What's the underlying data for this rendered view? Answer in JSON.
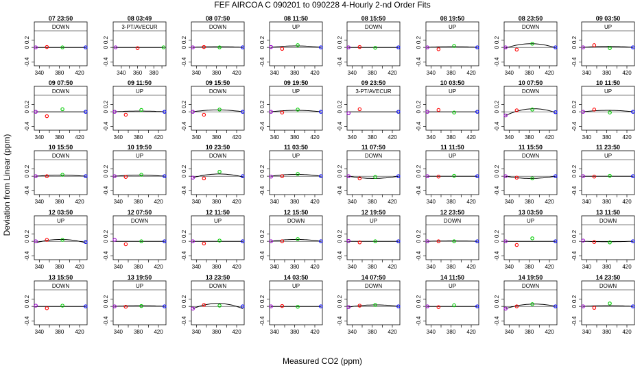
{
  "title": "FEF   AIRCOA C   090201 to 090228   4-Hourly 2-nd Order Fits",
  "xlabel": "Measured CO2 (ppm)",
  "ylabel": "Deviation from Linear (ppm)",
  "chart_data": {
    "type": "scatter",
    "grid": "small-multiples 8x5",
    "xlim": [
      330,
      435
    ],
    "ylim": [
      -0.5,
      0.45
    ],
    "x_ticks": [
      340,
      380,
      420
    ],
    "x_minor_ticks": [
      340,
      360,
      380,
      400,
      420
    ],
    "y_ticks": [
      -0.4,
      0,
      0.2
    ],
    "point_colors": [
      "#9900cc",
      "#ff0000",
      "#00cc00",
      "#0000ff"
    ],
    "curve_color": "#000000",
    "panels": [
      {
        "title": "07 23:50",
        "label": "DOWN",
        "x": [
          333,
          355,
          386,
          432
        ],
        "y": [
          0.0,
          0.01,
          0.0,
          0.0
        ],
        "curve": [
          0.0,
          0.0,
          0.0
        ]
      },
      {
        "title": "08 03:49",
        "label": "3-PT/AVECUR",
        "x": [
          333,
          360,
          392
        ],
        "y": [
          0.0,
          -0.02,
          0.0
        ],
        "curve": [
          0.0,
          0.0,
          0.0
        ],
        "xlim": [
          330,
          395
        ],
        "x_ticks": [
          340,
          360,
          380
        ],
        "x_minor_ticks": [
          340,
          350,
          360,
          370,
          380,
          390
        ]
      },
      {
        "title": "08 07:50",
        "label": "DOWN",
        "x": [
          333,
          355,
          386,
          432
        ],
        "y": [
          0.0,
          0.01,
          0.0,
          0.0
        ],
        "curve": [
          0.0,
          0.02,
          0.0
        ]
      },
      {
        "title": "08 11:50",
        "label": "UP",
        "x": [
          333,
          355,
          386,
          432
        ],
        "y": [
          0.01,
          -0.04,
          0.06,
          0.0
        ],
        "curve": [
          0.0,
          0.04,
          0.0
        ]
      },
      {
        "title": "08 15:50",
        "label": "DOWN",
        "x": [
          333,
          355,
          386,
          432
        ],
        "y": [
          0.0,
          0.01,
          -0.01,
          0.0
        ],
        "curve": [
          0.0,
          0.0,
          0.0
        ]
      },
      {
        "title": "08 19:50",
        "label": "UP",
        "x": [
          333,
          355,
          386,
          432
        ],
        "y": [
          0.0,
          -0.05,
          0.04,
          0.0
        ],
        "curve": [
          0.0,
          0.02,
          0.0
        ]
      },
      {
        "title": "08 23:50",
        "label": "DOWN",
        "x": [
          333,
          355,
          386,
          432
        ],
        "y": [
          0.0,
          -0.06,
          0.1,
          0.0
        ],
        "curve": [
          -0.02,
          0.1,
          -0.01
        ]
      },
      {
        "title": "09 03:50",
        "label": "UP",
        "x": [
          333,
          355,
          386,
          432
        ],
        "y": [
          0.0,
          0.06,
          -0.02,
          0.0
        ],
        "curve": [
          0.0,
          0.03,
          0.0
        ]
      },
      {
        "title": "09 07:50",
        "label": "DOWN",
        "x": [
          333,
          355,
          386,
          432
        ],
        "y": [
          0.0,
          -0.12,
          0.07,
          0.0
        ],
        "curve": [
          0.0,
          0.0,
          0.0
        ]
      },
      {
        "title": "09 11:50",
        "label": "UP",
        "x": [
          333,
          355,
          386,
          432
        ],
        "y": [
          0.0,
          -0.08,
          0.05,
          0.0
        ],
        "curve": [
          0.0,
          0.02,
          0.0
        ]
      },
      {
        "title": "09 15:50",
        "label": "DOWN",
        "x": [
          333,
          355,
          386,
          432
        ],
        "y": [
          0.0,
          -0.08,
          0.06,
          0.0
        ],
        "curve": [
          0.0,
          0.05,
          0.0
        ]
      },
      {
        "title": "09 19:50",
        "label": "UP",
        "x": [
          333,
          355,
          386,
          432
        ],
        "y": [
          0.0,
          -0.02,
          0.06,
          0.0
        ],
        "curve": [
          0.0,
          0.04,
          0.0
        ]
      },
      {
        "title": "09 23:50",
        "label": "3-PT/AVECUR",
        "x": [
          333,
          355,
          432
        ],
        "y": [
          -0.04,
          0.07,
          0.0
        ],
        "curve": [
          0.0,
          0.0,
          0.0
        ]
      },
      {
        "title": "10 03:50",
        "label": "UP",
        "x": [
          333,
          355,
          386,
          432
        ],
        "y": [
          0.0,
          0.05,
          -0.02,
          0.0
        ],
        "curve": [
          0.0,
          0.0,
          0.0
        ]
      },
      {
        "title": "10 07:50",
        "label": "DOWN",
        "x": [
          333,
          355,
          386,
          432
        ],
        "y": [
          -0.1,
          0.04,
          0.06,
          -0.01
        ],
        "curve": [
          -0.1,
          0.08,
          -0.02
        ]
      },
      {
        "title": "10 11:50",
        "label": "UP",
        "x": [
          333,
          355,
          386,
          432
        ],
        "y": [
          0.0,
          0.06,
          -0.02,
          0.0
        ],
        "curve": [
          0.0,
          0.04,
          0.0
        ]
      },
      {
        "title": "10 15:50",
        "label": "DOWN",
        "x": [
          333,
          355,
          386,
          432
        ],
        "y": [
          0.0,
          0.0,
          0.04,
          0.0
        ],
        "curve": [
          0.0,
          0.03,
          0.0
        ]
      },
      {
        "title": "10 19:50",
        "label": "UP",
        "x": [
          333,
          355,
          386,
          432
        ],
        "y": [
          0.0,
          -0.02,
          0.04,
          0.0
        ],
        "curve": [
          0.0,
          0.03,
          0.0
        ]
      },
      {
        "title": "10 23:50",
        "label": "DOWN",
        "x": [
          333,
          355,
          386,
          432
        ],
        "y": [
          -0.04,
          -0.06,
          0.12,
          0.0
        ],
        "curve": [
          -0.04,
          0.06,
          -0.02
        ]
      },
      {
        "title": "11 03:50",
        "label": "UP",
        "x": [
          333,
          355,
          386,
          432
        ],
        "y": [
          -0.01,
          0.0,
          0.06,
          0.0
        ],
        "curve": [
          0.0,
          0.05,
          0.0
        ]
      },
      {
        "title": "11 07:50",
        "label": "DOWN",
        "x": [
          333,
          355,
          386,
          432
        ],
        "y": [
          0.0,
          -0.06,
          -0.02,
          0.0
        ],
        "curve": [
          0.0,
          -0.06,
          0.0
        ]
      },
      {
        "title": "11 11:50",
        "label": "UP",
        "x": [
          333,
          355,
          386,
          432
        ],
        "y": [
          0.0,
          -0.01,
          0.01,
          0.0
        ],
        "curve": [
          0.0,
          0.0,
          0.0
        ]
      },
      {
        "title": "11 15:50",
        "label": "DOWN",
        "x": [
          333,
          355,
          386,
          432
        ],
        "y": [
          0.0,
          -0.04,
          -0.06,
          0.0
        ],
        "curve": [
          0.0,
          -0.06,
          0.0
        ]
      },
      {
        "title": "11 23:50",
        "label": "UP",
        "x": [
          333,
          355,
          386,
          432
        ],
        "y": [
          0.0,
          -0.01,
          0.01,
          0.0
        ],
        "curve": [
          0.0,
          0.0,
          0.0
        ]
      },
      {
        "title": "12 03:50",
        "label": "UP",
        "x": [
          333,
          355,
          386,
          432
        ],
        "y": [
          0.0,
          0.04,
          0.04,
          -0.02
        ],
        "curve": [
          -0.04,
          0.05,
          -0.04
        ]
      },
      {
        "title": "12 07:50",
        "label": "DOWN",
        "x": [
          333,
          355,
          386,
          432
        ],
        "y": [
          0.04,
          -0.08,
          0.0,
          0.0
        ],
        "curve": [
          0.0,
          0.0,
          0.0
        ]
      },
      {
        "title": "12 11:50",
        "label": "UP",
        "x": [
          333,
          355,
          386,
          432
        ],
        "y": [
          0.0,
          -0.06,
          0.02,
          0.0
        ],
        "curve": [
          0.0,
          0.0,
          0.0
        ]
      },
      {
        "title": "12 15:50",
        "label": "DOWN",
        "x": [
          333,
          355,
          386,
          432
        ],
        "y": [
          0.0,
          0.0,
          0.06,
          0.0
        ],
        "curve": [
          0.0,
          0.05,
          0.0
        ]
      },
      {
        "title": "12 19:50",
        "label": "UP",
        "x": [
          333,
          355,
          386,
          432
        ],
        "y": [
          0.01,
          -0.03,
          0.0,
          0.0
        ],
        "curve": [
          0.0,
          0.0,
          0.0
        ]
      },
      {
        "title": "12 23:50",
        "label": "DOWN",
        "x": [
          333,
          355,
          386,
          432
        ],
        "y": [
          0.0,
          0.0,
          0.0,
          0.0
        ],
        "curve": [
          0.0,
          0.01,
          0.0
        ]
      },
      {
        "title": "13 03:50",
        "label": "UP",
        "x": [
          333,
          355,
          386,
          432
        ],
        "y": [
          0.0,
          -0.1,
          0.08,
          0.0
        ],
        "curve": [
          0.0,
          0.0,
          0.0
        ]
      },
      {
        "title": "13 11:50",
        "label": "DOWN",
        "x": [
          333,
          355,
          386,
          432
        ],
        "y": [
          0.02,
          -0.02,
          -0.03,
          0.0
        ],
        "curve": [
          0.0,
          -0.01,
          0.0
        ]
      },
      {
        "title": "13 15:50",
        "label": "DOWN",
        "x": [
          333,
          355,
          386,
          432
        ],
        "y": [
          0.02,
          -0.05,
          0.02,
          0.0
        ],
        "curve": [
          0.0,
          0.0,
          0.0
        ]
      },
      {
        "title": "13 19:50",
        "label": "UP",
        "x": [
          333,
          355,
          386,
          432
        ],
        "y": [
          0.0,
          -0.01,
          0.01,
          0.0
        ],
        "curve": [
          0.0,
          0.02,
          0.0
        ]
      },
      {
        "title": "13 23:50",
        "label": "DOWN",
        "x": [
          333,
          355,
          386,
          432
        ],
        "y": [
          -0.06,
          0.04,
          0.02,
          0.0
        ],
        "curve": [
          -0.06,
          0.08,
          -0.06
        ]
      },
      {
        "title": "14 03:50",
        "label": "UP",
        "x": [
          333,
          355,
          386,
          432
        ],
        "y": [
          0.0,
          0.01,
          -0.01,
          0.0
        ],
        "curve": [
          0.0,
          0.0,
          0.0
        ]
      },
      {
        "title": "14 07:50",
        "label": "DOWN",
        "x": [
          333,
          355,
          386,
          432
        ],
        "y": [
          -0.02,
          0.02,
          0.04,
          0.0
        ],
        "curve": [
          -0.02,
          0.04,
          0.0
        ]
      },
      {
        "title": "14 11:50",
        "label": "UP",
        "x": [
          333,
          355,
          386,
          432
        ],
        "y": [
          0.0,
          -0.02,
          0.03,
          0.0
        ],
        "curve": [
          0.0,
          0.0,
          0.0
        ]
      },
      {
        "title": "14 19:50",
        "label": "DOWN",
        "x": [
          333,
          355,
          386,
          432
        ],
        "y": [
          -0.06,
          0.0,
          0.06,
          0.0
        ],
        "curve": [
          -0.06,
          0.06,
          0.0
        ]
      },
      {
        "title": "14 23:50",
        "label": "DOWN",
        "x": [
          333,
          355,
          386,
          432
        ],
        "y": [
          0.0,
          -0.04,
          0.08,
          0.0
        ],
        "curve": [
          0.0,
          0.02,
          0.0
        ]
      }
    ]
  }
}
